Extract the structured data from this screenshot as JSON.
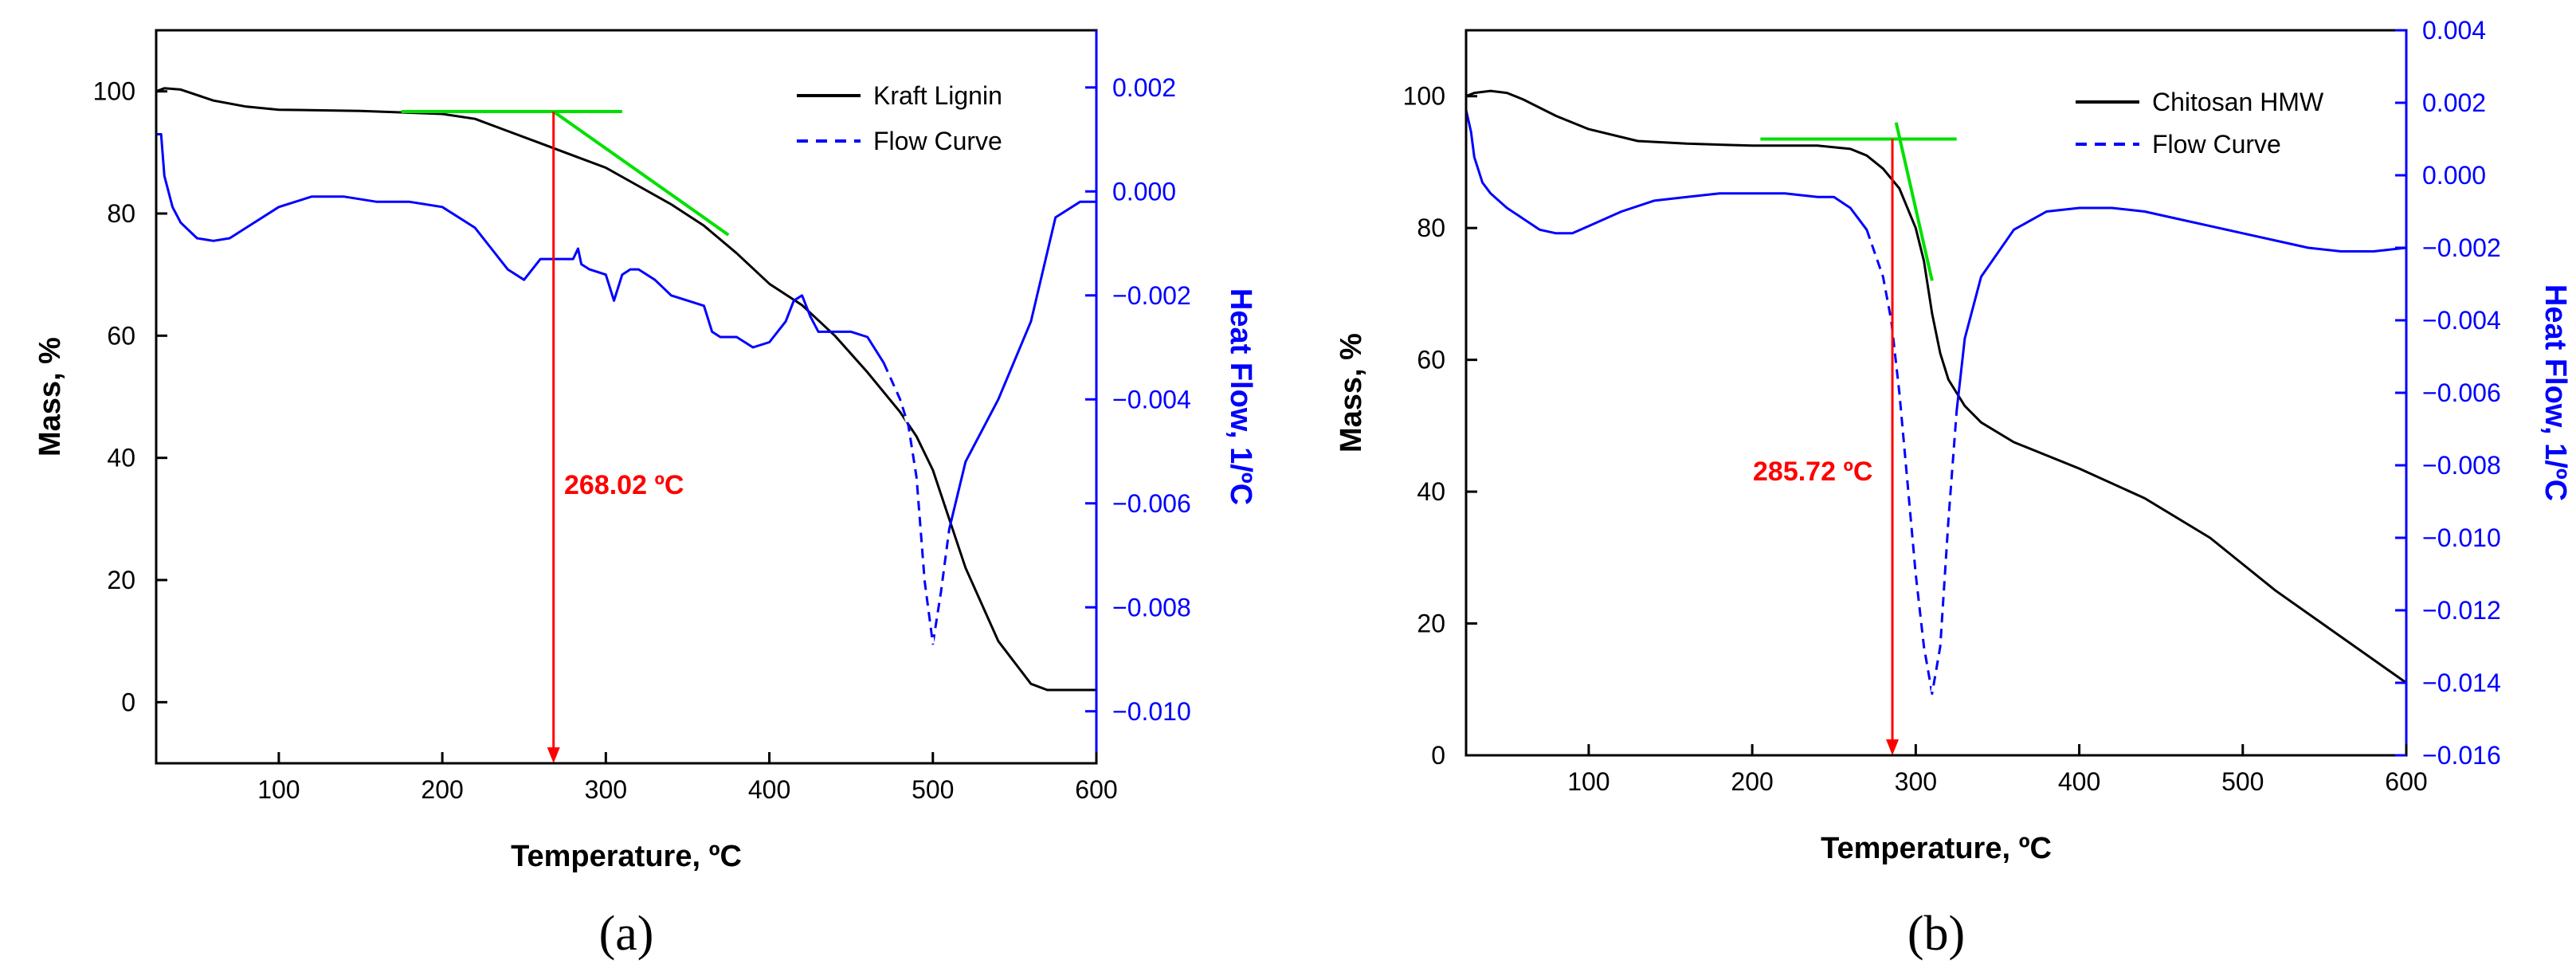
{
  "figure_panels": [
    "(a)",
    "(b)"
  ],
  "colors": {
    "mass": "#000000",
    "heat_flow": "#0000ff",
    "tangent": "#00e000",
    "onset": "#ff0000",
    "frame": "#000000",
    "right_axis": "#0000ff"
  },
  "chart_data": [
    {
      "type": "line",
      "panel": "(a)",
      "xlabel": "Temperature, ºC",
      "ylabel": "Mass, %",
      "y2label": "Heat Flow, 1/ºC",
      "xlim": [
        25,
        600
      ],
      "ylim": [
        -10,
        110
      ],
      "y2lim": [
        -0.011,
        0.0031
      ],
      "xticks": [
        100,
        200,
        300,
        400,
        500,
        600
      ],
      "yticks": [
        0,
        20,
        40,
        60,
        80,
        100
      ],
      "y2ticks": [
        0.002,
        0.0,
        -0.002,
        -0.004,
        -0.006,
        -0.008,
        -0.01
      ],
      "y2ticklabels": [
        "0.002",
        "0.000",
        "−0.002",
        "−0.004",
        "−0.006",
        "−0.008",
        "−0.010"
      ],
      "legend": {
        "position": "top-right",
        "entries": [
          "Kraft Lignin",
          "Flow Curve"
        ]
      },
      "series": [
        {
          "name": "Kraft Lignin",
          "axis": "left",
          "style": "solid",
          "x": [
            25,
            30,
            40,
            60,
            80,
            100,
            150,
            200,
            220,
            240,
            260,
            280,
            300,
            320,
            340,
            360,
            380,
            400,
            420,
            440,
            460,
            480,
            490,
            500,
            510,
            520,
            540,
            560,
            570,
            580,
            600
          ],
          "y": [
            100,
            100.5,
            100.3,
            98.5,
            97.5,
            97,
            96.8,
            96.3,
            95.5,
            93.5,
            91.5,
            89.5,
            87.5,
            84.5,
            81.5,
            78,
            73.5,
            68.5,
            65,
            60,
            54,
            47.5,
            43.5,
            38,
            30,
            22,
            10,
            3,
            2,
            2,
            2
          ]
        },
        {
          "name": "Flow Curve",
          "axis": "right",
          "style": "dash-then-solid",
          "dash_below_x": 30,
          "dash_segments": [
            [
              470,
              510
            ]
          ],
          "x": [
            25,
            28,
            30,
            35,
            40,
            50,
            60,
            70,
            80,
            100,
            120,
            140,
            160,
            180,
            200,
            220,
            230,
            240,
            250,
            260,
            270,
            280,
            283,
            285,
            290,
            300,
            305,
            310,
            315,
            320,
            330,
            340,
            350,
            360,
            365,
            370,
            380,
            390,
            400,
            410,
            415,
            420,
            425,
            430,
            440,
            450,
            460,
            470,
            480,
            485,
            490,
            495,
            500,
            505,
            510,
            520,
            540,
            560,
            575,
            590,
            600
          ],
          "y": [
            0.0011,
            0.0011,
            0.0003,
            -0.0003,
            -0.0006,
            -0.0009,
            -0.00095,
            -0.0009,
            -0.0007,
            -0.0003,
            -0.0001,
            -0.0001,
            -0.0002,
            -0.0002,
            -0.0003,
            -0.0007,
            -0.0011,
            -0.0015,
            -0.0017,
            -0.0013,
            -0.0013,
            -0.0013,
            -0.0011,
            -0.0014,
            -0.0015,
            -0.0016,
            -0.0021,
            -0.0016,
            -0.0015,
            -0.0015,
            -0.0017,
            -0.002,
            -0.0021,
            -0.0022,
            -0.0027,
            -0.0028,
            -0.0028,
            -0.003,
            -0.0029,
            -0.0025,
            -0.0021,
            -0.002,
            -0.0024,
            -0.0027,
            -0.0027,
            -0.0027,
            -0.0028,
            -0.0033,
            -0.004,
            -0.0045,
            -0.0055,
            -0.0075,
            -0.0087,
            -0.0077,
            -0.0065,
            -0.0052,
            -0.004,
            -0.0025,
            -0.0005,
            -0.0002,
            -0.0002
          ]
        }
      ],
      "tangent_lines": [
        {
          "x": [
            175,
            310
          ],
          "y": [
            96.7,
            96.7
          ]
        },
        {
          "x": [
            268,
            375
          ],
          "y": [
            96.7,
            76.5
          ]
        }
      ],
      "onset_marker": {
        "x": 268.02,
        "y_from": 96.7,
        "y_to": -10,
        "label": "268.02 ºC"
      }
    },
    {
      "type": "line",
      "panel": "(b)",
      "xlabel": "Temperature, ºC",
      "ylabel": "Mass, %",
      "y2label": "Heat Flow, 1/ºC",
      "xlim": [
        25,
        600
      ],
      "ylim": [
        0,
        110
      ],
      "y2lim": [
        -0.016,
        0.004
      ],
      "xticks": [
        100,
        200,
        300,
        400,
        500,
        600
      ],
      "yticks": [
        0,
        20,
        40,
        60,
        80,
        100
      ],
      "y2ticks": [
        0.004,
        0.002,
        0.0,
        -0.002,
        -0.004,
        -0.006,
        -0.008,
        -0.01,
        -0.012,
        -0.014,
        -0.016
      ],
      "y2ticklabels": [
        "0.004",
        "0.002",
        "0.000",
        "−0.002",
        "−0.004",
        "−0.006",
        "−0.008",
        "−0.010",
        "−0.012",
        "−0.014",
        "−0.016"
      ],
      "legend": {
        "position": "top-right",
        "entries": [
          "Chitosan HMW",
          "Flow Curve"
        ]
      },
      "series": [
        {
          "name": "Chitosan HMW",
          "axis": "left",
          "style": "solid",
          "x": [
            25,
            30,
            40,
            50,
            60,
            80,
            100,
            130,
            160,
            200,
            240,
            260,
            270,
            280,
            290,
            300,
            305,
            310,
            315,
            320,
            330,
            340,
            360,
            400,
            440,
            480,
            520,
            560,
            600
          ],
          "y": [
            100,
            100.5,
            100.8,
            100.5,
            99.5,
            97,
            95,
            93.2,
            92.8,
            92.5,
            92.5,
            92,
            91,
            89,
            86,
            80,
            75,
            67,
            61,
            57,
            53,
            50.5,
            47.5,
            43.5,
            39,
            33,
            25,
            18,
            11
          ]
        },
        {
          "name": "Flow Curve",
          "axis": "right",
          "style": "dash-then-solid",
          "dash_below_x": 30,
          "dash_segments": [
            [
              270,
              325
            ]
          ],
          "x": [
            25,
            28,
            30,
            35,
            40,
            50,
            60,
            70,
            80,
            90,
            100,
            120,
            140,
            160,
            180,
            200,
            220,
            240,
            250,
            260,
            270,
            280,
            285,
            290,
            295,
            300,
            305,
            310,
            315,
            320,
            325,
            330,
            340,
            360,
            380,
            400,
            420,
            440,
            460,
            480,
            500,
            520,
            540,
            560,
            580,
            600
          ],
          "y": [
            0.0018,
            0.0012,
            0.0005,
            -0.0002,
            -0.0005,
            -0.0009,
            -0.0012,
            -0.0015,
            -0.0016,
            -0.0016,
            -0.0014,
            -0.001,
            -0.0007,
            -0.0006,
            -0.0005,
            -0.0005,
            -0.0005,
            -0.0006,
            -0.0006,
            -0.0009,
            -0.0015,
            -0.0028,
            -0.004,
            -0.006,
            -0.0085,
            -0.011,
            -0.013,
            -0.0143,
            -0.013,
            -0.0095,
            -0.0065,
            -0.0045,
            -0.0028,
            -0.0015,
            -0.001,
            -0.0009,
            -0.0009,
            -0.001,
            -0.0012,
            -0.0014,
            -0.0016,
            -0.0018,
            -0.002,
            -0.0021,
            -0.0021,
            -0.002
          ]
        }
      ],
      "tangent_lines": [
        {
          "x": [
            205,
            325
          ],
          "y": [
            93.5,
            93.5
          ]
        },
        {
          "x": [
            288,
            310
          ],
          "y": [
            96,
            72
          ]
        }
      ],
      "onset_marker": {
        "x": 285.72,
        "y_from": 93.5,
        "y_to": 0,
        "label": "285.72 ºC"
      }
    }
  ]
}
